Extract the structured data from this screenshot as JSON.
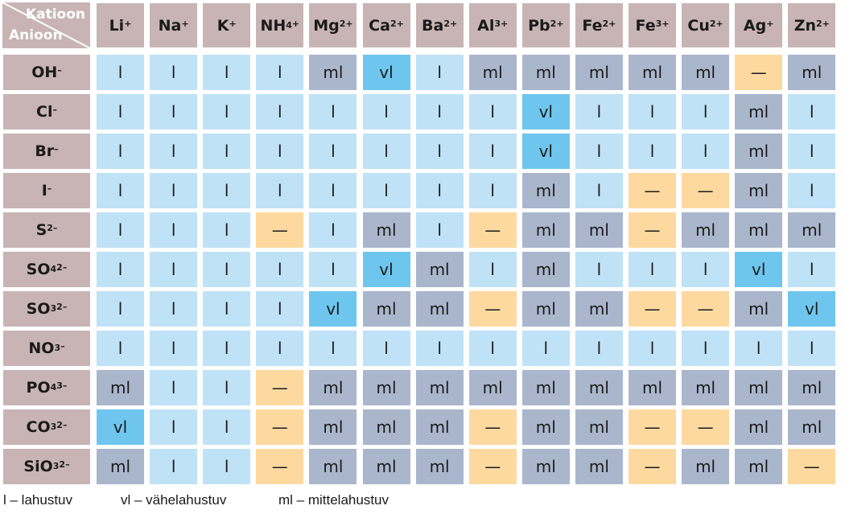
{
  "corner": {
    "cation_label": "Katioon",
    "anion_label": "Anioon"
  },
  "cations": [
    {
      "base": "Li",
      "sub": "",
      "sup": "+"
    },
    {
      "base": "Na",
      "sub": "",
      "sup": "+"
    },
    {
      "base": "K",
      "sub": "",
      "sup": "+"
    },
    {
      "base": "NH",
      "sub": "4",
      "sup": "+"
    },
    {
      "base": "Mg",
      "sub": "",
      "sup": "2+"
    },
    {
      "base": "Ca",
      "sub": "",
      "sup": "2+"
    },
    {
      "base": "Ba",
      "sub": "",
      "sup": "2+"
    },
    {
      "base": "Al",
      "sub": "",
      "sup": "3+"
    },
    {
      "base": "Pb",
      "sub": "",
      "sup": "2+"
    },
    {
      "base": "Fe",
      "sub": "",
      "sup": "2+"
    },
    {
      "base": "Fe",
      "sub": "",
      "sup": "3+"
    },
    {
      "base": "Cu",
      "sub": "",
      "sup": "2+"
    },
    {
      "base": "Ag",
      "sub": "",
      "sup": "+"
    },
    {
      "base": "Zn",
      "sub": "",
      "sup": "2+"
    }
  ],
  "anions": [
    {
      "base": "OH",
      "sub": "",
      "sup": "–"
    },
    {
      "base": "Cl",
      "sub": "",
      "sup": "–"
    },
    {
      "base": "Br",
      "sub": "",
      "sup": "–"
    },
    {
      "base": "I",
      "sub": "",
      "sup": "–"
    },
    {
      "base": "S",
      "sub": "",
      "sup": "2–"
    },
    {
      "base": "SO",
      "sub": "4",
      "sup": "2–"
    },
    {
      "base": "SO",
      "sub": "3",
      "sup": "2–"
    },
    {
      "base": "NO",
      "sub": "3",
      "sup": "–"
    },
    {
      "base": "PO",
      "sub": "4",
      "sup": "3–"
    },
    {
      "base": "CO",
      "sub": "3",
      "sup": "2–"
    },
    {
      "base": "SiO",
      "sub": "3",
      "sup": "2–"
    }
  ],
  "rows": [
    [
      "l",
      "l",
      "l",
      "l",
      "ml",
      "vl",
      "l",
      "ml",
      "ml",
      "ml",
      "ml",
      "ml",
      "—",
      "ml"
    ],
    [
      "l",
      "l",
      "l",
      "l",
      "l",
      "l",
      "l",
      "l",
      "vl",
      "l",
      "l",
      "l",
      "ml",
      "l"
    ],
    [
      "l",
      "l",
      "l",
      "l",
      "l",
      "l",
      "l",
      "l",
      "vl",
      "l",
      "l",
      "l",
      "ml",
      "l"
    ],
    [
      "l",
      "l",
      "l",
      "l",
      "l",
      "l",
      "l",
      "l",
      "ml",
      "l",
      "—",
      "—",
      "ml",
      "l"
    ],
    [
      "l",
      "l",
      "l",
      "—",
      "l",
      "ml",
      "l",
      "—",
      "ml",
      "ml",
      "—",
      "ml",
      "ml",
      "ml"
    ],
    [
      "l",
      "l",
      "l",
      "l",
      "l",
      "vl",
      "ml",
      "l",
      "ml",
      "l",
      "l",
      "l",
      "vl",
      "l"
    ],
    [
      "l",
      "l",
      "l",
      "l",
      "vl",
      "ml",
      "ml",
      "—",
      "ml",
      "ml",
      "—",
      "—",
      "ml",
      "vl"
    ],
    [
      "l",
      "l",
      "l",
      "l",
      "l",
      "l",
      "l",
      "l",
      "l",
      "l",
      "l",
      "l",
      "l",
      "l"
    ],
    [
      "ml",
      "l",
      "l",
      "—",
      "ml",
      "ml",
      "ml",
      "ml",
      "ml",
      "ml",
      "ml",
      "ml",
      "ml",
      "ml"
    ],
    [
      "vl",
      "l",
      "l",
      "—",
      "ml",
      "ml",
      "ml",
      "—",
      "ml",
      "ml",
      "—",
      "—",
      "ml",
      "ml"
    ],
    [
      "ml",
      "l",
      "l",
      "—",
      "ml",
      "ml",
      "ml",
      "—",
      "ml",
      "ml",
      "—",
      "ml",
      "ml",
      "—"
    ]
  ],
  "colors": {
    "l": "#bfe2f6",
    "vl": "#6ec6ee",
    "ml": "#a9b6cc",
    "—": "#fdd9a0",
    "header": "#c8b4b5"
  },
  "legend": {
    "l": "l – lahustuv",
    "vl": "vl – vähelahustuv",
    "ml": "ml – mittelahustuv"
  }
}
